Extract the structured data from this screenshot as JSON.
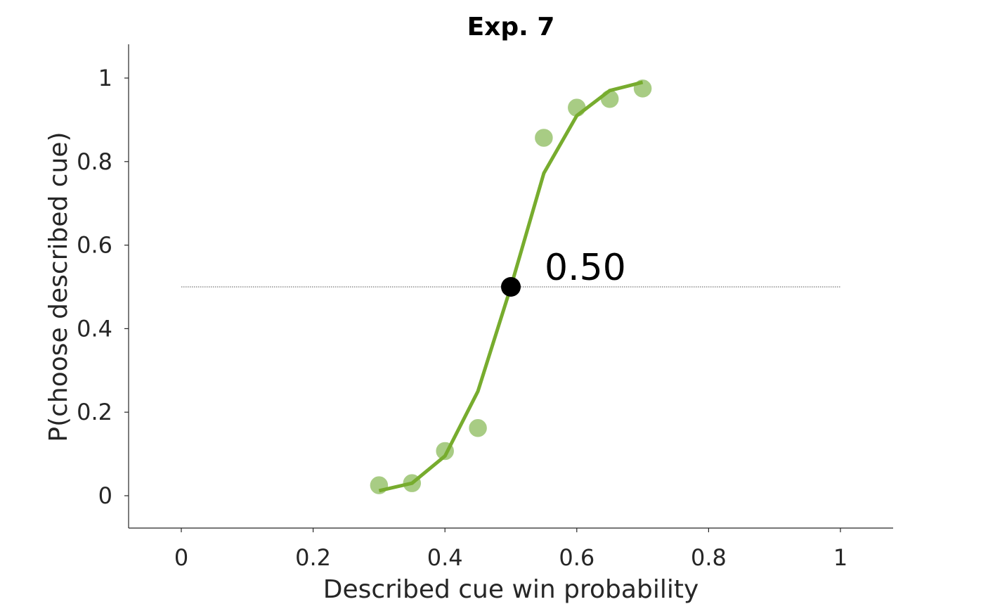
{
  "chart_data": {
    "type": "line",
    "title": "Exp. 7",
    "xlabel": "Described cue win probability",
    "ylabel": "P(choose described cue)",
    "xlim": [
      -0.08,
      1.08
    ],
    "ylim": [
      -0.08,
      1.08
    ],
    "xticks": [
      0,
      0.2,
      0.4,
      0.6,
      0.8,
      1
    ],
    "xtick_labels": [
      "0",
      "0.2",
      "0.4",
      "0.6",
      "0.8",
      "1"
    ],
    "yticks": [
      0,
      0.2,
      0.4,
      0.6,
      0.8,
      1
    ],
    "ytick_labels": [
      "0",
      "0.2",
      "0.4",
      "0.6",
      "0.8",
      "1"
    ],
    "grid": false,
    "series": [
      {
        "kind": "points",
        "color": "#a8cc84",
        "x": [
          0.3,
          0.35,
          0.4,
          0.45,
          0.55,
          0.6,
          0.65,
          0.7
        ],
        "y": [
          0.025,
          0.03,
          0.107,
          0.162,
          0.857,
          0.929,
          0.95,
          0.975
        ]
      },
      {
        "kind": "fit",
        "color": "#77ac2e",
        "x": [
          0.3,
          0.35,
          0.4,
          0.45,
          0.5,
          0.55,
          0.6,
          0.65,
          0.7
        ],
        "y": [
          0.012,
          0.03,
          0.095,
          0.25,
          0.5,
          0.772,
          0.91,
          0.97,
          0.99
        ]
      }
    ],
    "reference_line": {
      "y": 0.5,
      "x_from": 0,
      "x_to": 1,
      "style": "dotted",
      "color": "#555555"
    },
    "indifference_point": {
      "x": 0.5,
      "y": 0.5,
      "color": "#000000"
    },
    "annotation": {
      "text": "0.50",
      "x": 0.5,
      "y": 0.5
    }
  }
}
